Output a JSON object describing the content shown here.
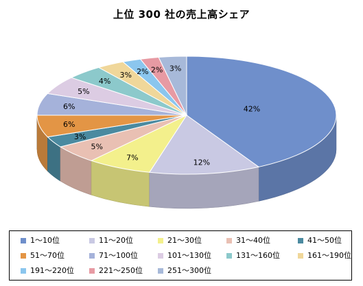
{
  "chart_data": {
    "type": "pie",
    "title": "上位 300 社の売上高シェア",
    "categories": [
      "1～10位",
      "11～20位",
      "21～30位",
      "31～40位",
      "41～50位",
      "51～70位",
      "71～100位",
      "101～130位",
      "131～160位",
      "161～190位",
      "191～220位",
      "221～250位",
      "251～300位"
    ],
    "values": [
      42,
      12,
      7,
      5,
      3,
      6,
      6,
      5,
      4,
      3,
      2,
      2,
      3
    ],
    "data_labels": [
      "42%",
      "12%",
      "7%",
      "5%",
      "3%",
      "6%",
      "6%",
      "5%",
      "4%",
      "3%",
      "2%",
      "2%",
      "3%"
    ],
    "colors": [
      "#6f8fcb",
      "#c9c9e3",
      "#f3f08c",
      "#e9c0b3",
      "#4b8aa0",
      "#e39545",
      "#a5b2da",
      "#dccce3",
      "#8cc9cb",
      "#f0d79a",
      "#8bc6ee",
      "#e79aa3",
      "#a7b9d9"
    ],
    "legend_position": "bottom",
    "style": "3d-pie"
  }
}
